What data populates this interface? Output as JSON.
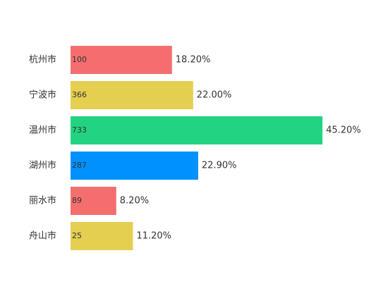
{
  "chart_data": {
    "type": "hbar",
    "categories": [
      "杭州市",
      "宁波市",
      "温州市",
      "湖州市",
      "丽水市",
      "舟山市"
    ],
    "values": [
      18.2,
      22.0,
      45.2,
      22.9,
      8.2,
      11.2
    ],
    "value_labels": [
      "18.20%",
      "22.00%",
      "45.20%",
      "22.90%",
      "8.20%",
      "11.20%"
    ],
    "inner_labels": [
      100,
      366,
      733,
      287,
      89,
      25
    ],
    "colors": [
      "#f56e6e",
      "#e5cf50",
      "#22d382",
      "#0091ff",
      "#f56e6e",
      "#e5cf50"
    ],
    "xlim": [
      0,
      50
    ]
  }
}
